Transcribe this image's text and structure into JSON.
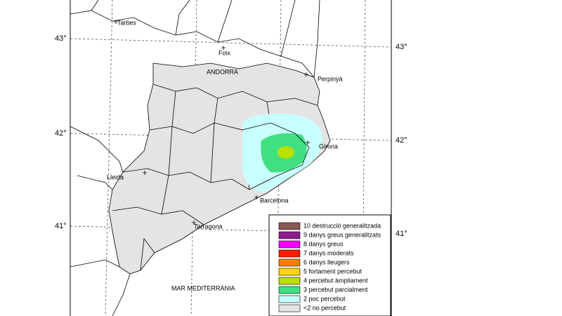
{
  "map": {
    "latitude_labels_left": [
      "43°",
      "42°",
      "41°"
    ],
    "latitude_labels_right": [
      "43°",
      "42°",
      "41°"
    ],
    "places": [
      "Tarbes",
      "Foix",
      "ANDORRA",
      "Perpinyà",
      "Girona",
      "Lleida",
      "Barcelona",
      "Tarragona",
      "MAR MEDITERRÀNIA"
    ]
  },
  "legend": {
    "items": [
      {
        "label": "10 destrucció generalitzada",
        "color": "#8c5a52"
      },
      {
        "label": "9 danys greus generalitzats",
        "color": "#8c1c8c"
      },
      {
        "label": "8 danys greus",
        "color": "#ff00ff"
      },
      {
        "label": "7 danys moderats",
        "color": "#ff1a00"
      },
      {
        "label": "6 danys lleugers",
        "color": "#ff8000"
      },
      {
        "label": "5 fortament percebut",
        "color": "#ffd500"
      },
      {
        "label": "4 percebut àmpliament",
        "color": "#b8e000"
      },
      {
        "label": "3 percebut parcialment",
        "color": "#40e080"
      },
      {
        "label": "2 poc percebut",
        "color": "#c8ffff"
      },
      {
        "label": "<2 no percebut",
        "color": "#e4e4e4"
      }
    ]
  }
}
